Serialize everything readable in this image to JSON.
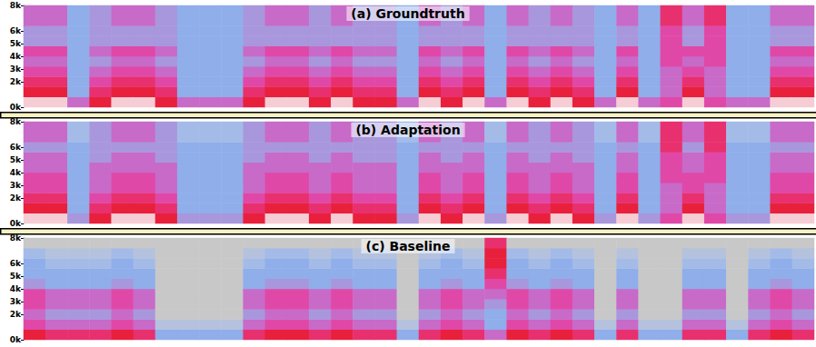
{
  "chart_data": [
    {
      "type": "heatmap",
      "title": "(a) Groundtruth",
      "tick_labels": "y",
      "ylim": [
        0,
        8000
      ],
      "yticks": [
        {
          "value": 0,
          "label": "0k"
        },
        {
          "value": 2000,
          "label": "2k"
        },
        {
          "value": 3000,
          "label": "3k"
        },
        {
          "value": 4000,
          "label": "4k"
        },
        {
          "value": 5000,
          "label": "5k"
        },
        {
          "value": 6000,
          "label": "6k"
        },
        {
          "value": 8000,
          "label": "8k"
        }
      ],
      "y": [
        400,
        1200,
        2000,
        2800,
        3600,
        4400,
        5200,
        6000,
        6800,
        7600
      ],
      "values": [
        [
          9,
          8,
          7,
          6,
          5,
          6,
          4,
          4,
          5,
          5
        ],
        [
          9,
          8,
          7,
          6,
          5,
          6,
          4,
          4,
          5,
          5
        ],
        [
          5,
          3,
          3,
          3,
          3,
          3,
          3,
          3,
          3,
          3
        ],
        [
          8,
          7,
          6,
          5,
          4,
          5,
          4,
          4,
          4,
          4
        ],
        [
          9,
          8,
          7,
          6,
          5,
          6,
          4,
          4,
          5,
          5
        ],
        [
          9,
          8,
          7,
          6,
          5,
          6,
          4,
          4,
          5,
          5
        ],
        [
          8,
          7,
          6,
          5,
          4,
          5,
          4,
          4,
          4,
          4
        ],
        [
          5,
          3,
          3,
          3,
          3,
          3,
          3,
          3,
          3,
          3
        ],
        [
          5,
          3,
          3,
          3,
          3,
          3,
          3,
          3,
          3,
          3
        ],
        [
          5,
          3,
          3,
          3,
          3,
          3,
          3,
          3,
          3,
          3
        ],
        [
          8,
          7,
          6,
          5,
          4,
          5,
          4,
          4,
          4,
          4
        ],
        [
          9,
          8,
          7,
          6,
          5,
          6,
          4,
          4,
          5,
          5
        ],
        [
          9,
          8,
          7,
          6,
          5,
          6,
          4,
          4,
          5,
          5
        ],
        [
          8,
          7,
          6,
          5,
          4,
          5,
          4,
          4,
          4,
          4
        ],
        [
          9,
          8,
          7,
          6,
          5,
          6,
          4,
          4,
          5,
          5
        ],
        [
          8,
          7,
          6,
          5,
          4,
          5,
          4,
          4,
          4,
          4
        ],
        [
          8,
          7,
          6,
          5,
          4,
          5,
          4,
          4,
          4,
          4
        ],
        [
          5,
          3,
          3,
          3,
          3,
          3,
          3,
          3,
          3,
          3
        ],
        [
          9,
          8,
          7,
          6,
          5,
          6,
          4,
          4,
          5,
          5
        ],
        [
          8,
          7,
          6,
          5,
          4,
          5,
          4,
          4,
          4,
          4
        ],
        [
          9,
          8,
          7,
          6,
          5,
          6,
          4,
          4,
          5,
          5
        ],
        [
          5,
          3,
          3,
          3,
          3,
          3,
          3,
          3,
          3,
          3
        ],
        [
          9,
          8,
          7,
          6,
          5,
          6,
          4,
          4,
          5,
          5
        ],
        [
          8,
          7,
          6,
          5,
          4,
          5,
          4,
          4,
          4,
          4
        ],
        [
          9,
          8,
          7,
          6,
          5,
          6,
          4,
          4,
          5,
          5
        ],
        [
          8,
          7,
          6,
          5,
          4,
          5,
          4,
          4,
          4,
          4
        ],
        [
          5,
          3,
          3,
          3,
          3,
          3,
          3,
          3,
          3,
          3
        ],
        [
          9,
          8,
          7,
          6,
          5,
          6,
          4,
          4,
          5,
          5
        ],
        [
          5,
          3,
          3,
          3,
          3,
          3,
          3,
          3,
          3,
          3
        ],
        [
          6,
          5,
          5,
          5,
          6,
          6,
          6,
          6,
          7,
          7
        ],
        [
          9,
          8,
          7,
          6,
          5,
          6,
          4,
          4,
          5,
          5
        ],
        [
          6,
          5,
          5,
          5,
          6,
          6,
          6,
          6,
          7,
          7
        ],
        [
          5,
          3,
          3,
          3,
          3,
          3,
          3,
          3,
          3,
          3
        ],
        [
          5,
          3,
          3,
          3,
          3,
          3,
          3,
          3,
          3,
          3
        ],
        [
          9,
          8,
          7,
          6,
          5,
          6,
          4,
          4,
          5,
          5
        ],
        [
          9,
          8,
          7,
          6,
          5,
          6,
          4,
          4,
          5,
          5
        ]
      ]
    },
    {
      "type": "heatmap",
      "title": "(b) Adaptation",
      "tick_labels": "y",
      "ylim": [
        0,
        8000
      ],
      "yticks": [
        {
          "value": 0,
          "label": "0k"
        },
        {
          "value": 2000,
          "label": "2k"
        },
        {
          "value": 3000,
          "label": "3k"
        },
        {
          "value": 4000,
          "label": "4k"
        },
        {
          "value": 5000,
          "label": "5k"
        },
        {
          "value": 6000,
          "label": "6k"
        },
        {
          "value": 8000,
          "label": "8k"
        }
      ],
      "y": [
        400,
        1200,
        2000,
        2800,
        3600,
        4400,
        5200,
        6000,
        6800,
        7600
      ],
      "values": [
        [
          9,
          8,
          7,
          6,
          6,
          5,
          5,
          4,
          5,
          5
        ],
        [
          9,
          8,
          7,
          6,
          6,
          5,
          5,
          4,
          5,
          5
        ],
        [
          4,
          3,
          3,
          3,
          3,
          3,
          3,
          3,
          2,
          2
        ],
        [
          8,
          7,
          6,
          5,
          5,
          5,
          4,
          4,
          4,
          4
        ],
        [
          9,
          8,
          7,
          6,
          6,
          5,
          5,
          4,
          5,
          5
        ],
        [
          9,
          8,
          7,
          6,
          6,
          5,
          5,
          4,
          5,
          5
        ],
        [
          8,
          7,
          6,
          5,
          5,
          5,
          4,
          4,
          4,
          4
        ],
        [
          4,
          3,
          3,
          3,
          3,
          3,
          3,
          3,
          2,
          2
        ],
        [
          4,
          3,
          3,
          3,
          3,
          3,
          3,
          3,
          2,
          2
        ],
        [
          4,
          3,
          3,
          3,
          3,
          3,
          3,
          3,
          2,
          2
        ],
        [
          8,
          7,
          6,
          5,
          5,
          5,
          4,
          4,
          4,
          4
        ],
        [
          9,
          8,
          7,
          6,
          6,
          5,
          5,
          4,
          5,
          5
        ],
        [
          9,
          8,
          7,
          6,
          6,
          5,
          5,
          4,
          5,
          5
        ],
        [
          8,
          7,
          6,
          5,
          5,
          5,
          4,
          4,
          4,
          4
        ],
        [
          9,
          8,
          7,
          6,
          6,
          5,
          5,
          4,
          5,
          5
        ],
        [
          8,
          7,
          6,
          5,
          5,
          5,
          4,
          4,
          4,
          4
        ],
        [
          8,
          7,
          6,
          5,
          5,
          5,
          4,
          4,
          4,
          4
        ],
        [
          4,
          3,
          3,
          3,
          3,
          3,
          3,
          3,
          2,
          2
        ],
        [
          9,
          8,
          7,
          6,
          6,
          5,
          5,
          4,
          5,
          5
        ],
        [
          8,
          7,
          6,
          5,
          5,
          5,
          4,
          4,
          4,
          4
        ],
        [
          9,
          8,
          7,
          6,
          6,
          5,
          5,
          4,
          5,
          5
        ],
        [
          4,
          3,
          3,
          3,
          3,
          3,
          3,
          3,
          2,
          2
        ],
        [
          9,
          8,
          7,
          6,
          6,
          5,
          5,
          4,
          5,
          5
        ],
        [
          8,
          7,
          6,
          5,
          5,
          5,
          4,
          4,
          4,
          4
        ],
        [
          9,
          8,
          7,
          6,
          6,
          5,
          5,
          4,
          5,
          5
        ],
        [
          8,
          7,
          6,
          5,
          5,
          5,
          4,
          4,
          4,
          4
        ],
        [
          4,
          3,
          3,
          3,
          3,
          3,
          3,
          3,
          2,
          2
        ],
        [
          9,
          8,
          7,
          6,
          6,
          5,
          5,
          4,
          5,
          5
        ],
        [
          4,
          3,
          3,
          3,
          3,
          3,
          3,
          3,
          2,
          2
        ],
        [
          6,
          5,
          5,
          5,
          6,
          6,
          6,
          7,
          7,
          7
        ],
        [
          9,
          8,
          7,
          6,
          6,
          5,
          5,
          4,
          5,
          5
        ],
        [
          6,
          5,
          5,
          5,
          6,
          6,
          6,
          7,
          7,
          7
        ],
        [
          4,
          3,
          3,
          3,
          3,
          3,
          3,
          3,
          2,
          2
        ],
        [
          4,
          3,
          3,
          3,
          3,
          3,
          3,
          3,
          2,
          2
        ],
        [
          9,
          8,
          7,
          6,
          6,
          5,
          5,
          4,
          5,
          5
        ],
        [
          9,
          8,
          7,
          6,
          6,
          5,
          5,
          4,
          5,
          5
        ]
      ]
    },
    {
      "type": "heatmap",
      "title": "(c) Baseline",
      "tick_labels": "y",
      "ylim": [
        0,
        8000
      ],
      "yticks": [
        {
          "value": 0,
          "label": "0k"
        },
        {
          "value": 2000,
          "label": "2k"
        },
        {
          "value": 3000,
          "label": "3k"
        },
        {
          "value": 4000,
          "label": "4k"
        },
        {
          "value": 5000,
          "label": "5k"
        },
        {
          "value": 6000,
          "label": "6k"
        },
        {
          "value": 8000,
          "label": "8k"
        }
      ],
      "y": [
        400,
        1200,
        2000,
        2800,
        3600,
        4400,
        5200,
        6000,
        6800,
        7600
      ],
      "values": [
        [
          8,
          6,
          5,
          6,
          6,
          4,
          3,
          3,
          2,
          0
        ],
        [
          7,
          5,
          4,
          5,
          5,
          3,
          3,
          2,
          1,
          0
        ],
        [
          7,
          5,
          4,
          5,
          5,
          3,
          3,
          2,
          1,
          0
        ],
        [
          7,
          5,
          4,
          5,
          5,
          3,
          3,
          2,
          1,
          0
        ],
        [
          8,
          6,
          5,
          6,
          6,
          4,
          3,
          3,
          2,
          0
        ],
        [
          7,
          5,
          4,
          5,
          5,
          3,
          3,
          2,
          1,
          0
        ],
        [
          3,
          1,
          0,
          0,
          0,
          0,
          0,
          0,
          0,
          0
        ],
        [
          3,
          1,
          0,
          0,
          0,
          0,
          0,
          0,
          0,
          0
        ],
        [
          3,
          1,
          0,
          0,
          0,
          0,
          0,
          0,
          0,
          0
        ],
        [
          3,
          1,
          0,
          0,
          0,
          0,
          0,
          0,
          0,
          0
        ],
        [
          7,
          5,
          4,
          5,
          5,
          3,
          3,
          2,
          1,
          0
        ],
        [
          8,
          6,
          5,
          6,
          6,
          4,
          3,
          3,
          2,
          0
        ],
        [
          8,
          6,
          5,
          6,
          6,
          4,
          3,
          3,
          2,
          0
        ],
        [
          7,
          5,
          4,
          5,
          5,
          3,
          3,
          2,
          1,
          0
        ],
        [
          8,
          6,
          5,
          6,
          6,
          4,
          3,
          3,
          2,
          0
        ],
        [
          7,
          5,
          4,
          5,
          5,
          3,
          3,
          2,
          1,
          0
        ],
        [
          7,
          5,
          4,
          5,
          5,
          3,
          3,
          2,
          1,
          0
        ],
        [
          3,
          1,
          0,
          0,
          0,
          0,
          0,
          0,
          0,
          0
        ],
        [
          7,
          5,
          4,
          5,
          5,
          3,
          3,
          2,
          1,
          0
        ],
        [
          8,
          6,
          5,
          6,
          6,
          4,
          3,
          3,
          2,
          0
        ],
        [
          7,
          5,
          4,
          5,
          5,
          3,
          3,
          2,
          1,
          0
        ],
        [
          5,
          3,
          3,
          4,
          5,
          6,
          7,
          8,
          8,
          7
        ],
        [
          8,
          6,
          5,
          6,
          6,
          4,
          3,
          3,
          2,
          0
        ],
        [
          7,
          5,
          4,
          5,
          5,
          3,
          3,
          2,
          1,
          0
        ],
        [
          8,
          6,
          5,
          6,
          6,
          4,
          3,
          3,
          2,
          0
        ],
        [
          7,
          5,
          4,
          5,
          5,
          3,
          3,
          2,
          1,
          0
        ],
        [
          3,
          1,
          0,
          0,
          0,
          0,
          0,
          0,
          0,
          0
        ],
        [
          7,
          5,
          4,
          5,
          5,
          3,
          3,
          2,
          1,
          0
        ],
        [
          3,
          1,
          0,
          0,
          0,
          0,
          0,
          0,
          0,
          0
        ],
        [
          3,
          1,
          0,
          0,
          0,
          0,
          0,
          0,
          0,
          0
        ],
        [
          7,
          5,
          4,
          5,
          5,
          3,
          3,
          2,
          1,
          0
        ],
        [
          7,
          5,
          4,
          5,
          5,
          3,
          3,
          2,
          1,
          0
        ],
        [
          3,
          1,
          0,
          0,
          0,
          0,
          0,
          0,
          0,
          0
        ],
        [
          7,
          5,
          4,
          5,
          5,
          3,
          3,
          2,
          1,
          0
        ],
        [
          8,
          6,
          5,
          6,
          6,
          4,
          3,
          3,
          2,
          0
        ],
        [
          7,
          5,
          4,
          5,
          5,
          3,
          3,
          2,
          1,
          0
        ]
      ]
    }
  ]
}
